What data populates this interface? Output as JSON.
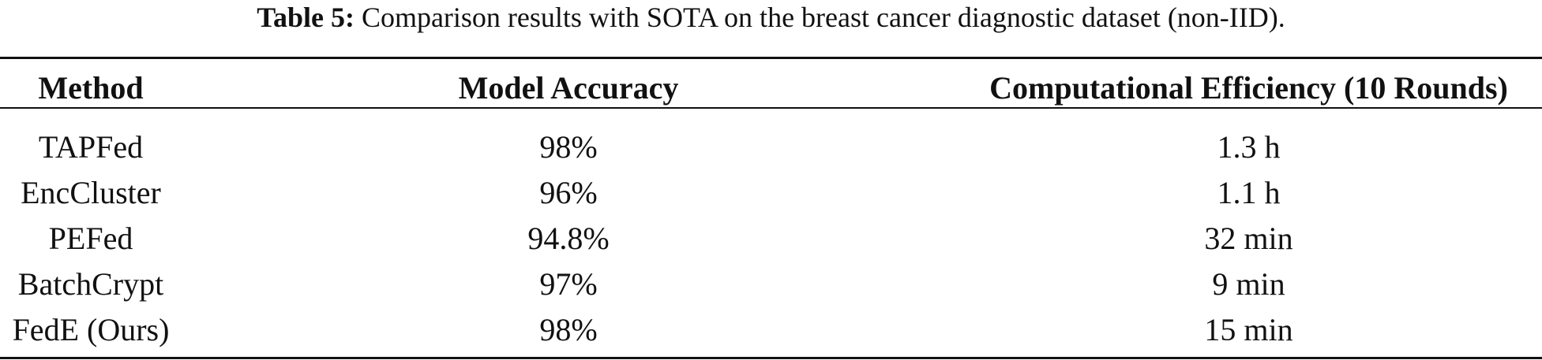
{
  "caption": {
    "label": "Table 5:",
    "text": "Comparison results with SOTA on the breast cancer diagnostic dataset (non-IID)."
  },
  "table": {
    "headers": [
      "Method",
      "Model Accuracy",
      "Computational Efficiency (10 Rounds)"
    ],
    "rows": [
      [
        "TAPFed",
        "98%",
        "1.3 h"
      ],
      [
        "EncCluster",
        "96%",
        "1.1 h"
      ],
      [
        "PEFed",
        "94.8%",
        "32 min"
      ],
      [
        "BatchCrypt",
        "97%",
        "9 min"
      ],
      [
        "FedE (Ours)",
        "98%",
        "15 min"
      ]
    ]
  }
}
